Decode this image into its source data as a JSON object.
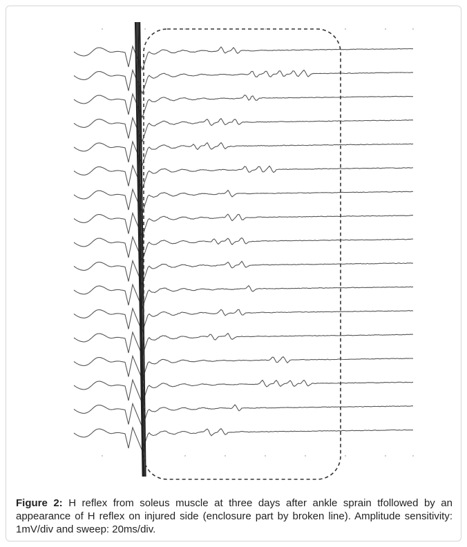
{
  "figure": {
    "label": "Figure 2:",
    "caption": " H reflex from soleus muscle at three days after ankle sprain tfollowed by an appearance of H reflex on injured side (enclosure part by broken line). Amplitude sensitivity: 1mV/div and sweep: 20ms/div.",
    "trace_count": 17,
    "colors": {
      "trace": "#555555",
      "artifact": "#222222",
      "enclosure": "#333333",
      "grid_dot": "#bbbbbb"
    }
  }
}
